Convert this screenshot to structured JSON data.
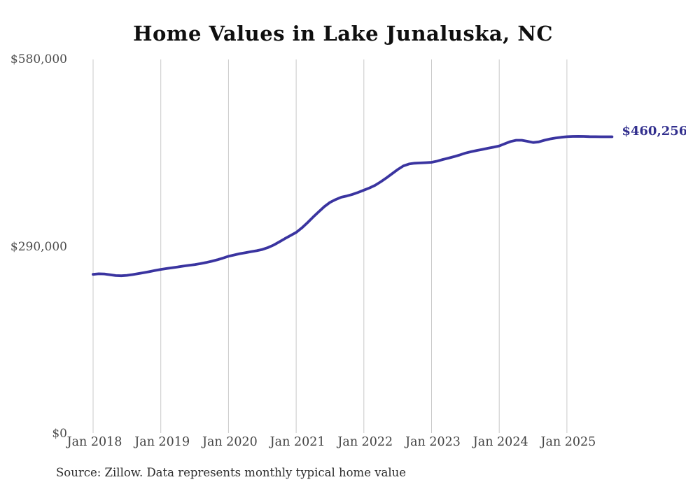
{
  "page": {
    "title": "Home Values in Lake Junaluska, NC",
    "source_note": "Source: Zillow. Data represents monthly typical home value"
  },
  "colors": {
    "background": "#ffffff",
    "line": "#3a34a0",
    "final_label": "#322f8e",
    "grid": "#c9c9c9",
    "title_text": "#0f0f0f",
    "ytick_text": "#4d4d4d",
    "xtick_text": "#444444",
    "source_text": "#2d2d2d"
  },
  "chart_data": {
    "type": "line",
    "title": "Home Values in Lake Junaluska, NC",
    "xlabel": "",
    "ylabel": "",
    "ylim": [
      0,
      580000
    ],
    "grid": "vertical-only",
    "legend_position": "none",
    "yticks": [
      {
        "value": 0,
        "label": "$0"
      },
      {
        "value": 290000,
        "label": "$290,000"
      },
      {
        "value": 580000,
        "label": "$580,000"
      }
    ],
    "xticks": [
      "Jan 2018",
      "Jan 2019",
      "Jan 2020",
      "Jan 2021",
      "Jan 2022",
      "Jan 2023",
      "Jan 2024",
      "Jan 2025"
    ],
    "final_value": 460256,
    "final_value_label": "$460,256",
    "series": [
      {
        "name": "Monthly typical home value",
        "frequency": "monthly",
        "start_month": "2018-01",
        "end_month": "2025-09",
        "values": [
          247000,
          247800,
          247600,
          246300,
          245100,
          244800,
          245400,
          246600,
          248100,
          249700,
          251300,
          253000,
          254700,
          256000,
          257300,
          258500,
          259700,
          260900,
          262100,
          263600,
          265300,
          267200,
          269500,
          272100,
          275000,
          277000,
          279000,
          280600,
          282100,
          283600,
          285600,
          288500,
          292400,
          297300,
          302400,
          307100,
          312000,
          319000,
          327000,
          335800,
          344000,
          352000,
          358500,
          363000,
          366500,
          368500,
          371000,
          374000,
          377500,
          381000,
          385000,
          390500,
          396500,
          403000,
          409500,
          415000,
          418000,
          419200,
          419700,
          420100,
          420600,
          422500,
          425000,
          427100,
          429400,
          432000,
          434900,
          437000,
          439000,
          440600,
          442400,
          444000,
          446000,
          449500,
          452800,
          454800,
          454800,
          453200,
          451300,
          452300,
          454800,
          456800,
          458300,
          459500,
          460300,
          460700,
          460900,
          460700,
          460400,
          460300,
          460250,
          460200,
          460256
        ]
      }
    ]
  }
}
